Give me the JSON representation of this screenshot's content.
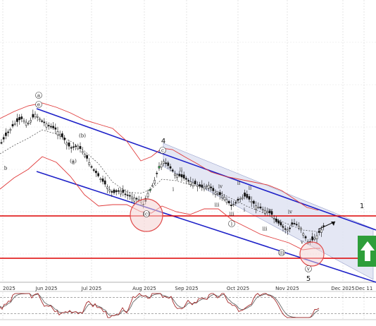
{
  "chart_data": {
    "type": "candlestick",
    "title": "",
    "xlabel": "",
    "ylabel": "",
    "x_axis": {
      "tick_labels": [
        "2025",
        "Jun 2025",
        "Jul 2025",
        "Aug 2025",
        "Sep 2025",
        "Oct 2025",
        "Nov 2025",
        "Dec 2025",
        "Dec 11"
      ]
    },
    "y_axis": {
      "tick_labels": []
    },
    "grid": true,
    "colors": {
      "channel": "#1f22c8",
      "bollinger": "#e03a3a",
      "support": "#dd0000",
      "candle": "#111111",
      "channel_fill": "#dfe3f2",
      "circle": "#e04a4a",
      "arrow_box": "#2e9e3a",
      "oscillator_main": "#a52a2a",
      "oscillator_signal": "#555555"
    },
    "wave_labels": [
      "a",
      "e",
      "b",
      "a",
      "c",
      "(b)",
      "(a)",
      "(c)",
      "ii",
      "i",
      "iii",
      "iv",
      "ii",
      "i",
      "iii",
      "iv",
      "v",
      "i",
      "iii",
      "iv",
      "ii",
      "v",
      "iii",
      "v"
    ],
    "major_labels": [
      "4",
      "5",
      "1"
    ],
    "arrow_direction": "up",
    "oscillator": {
      "levels": [
        80,
        20
      ]
    }
  }
}
